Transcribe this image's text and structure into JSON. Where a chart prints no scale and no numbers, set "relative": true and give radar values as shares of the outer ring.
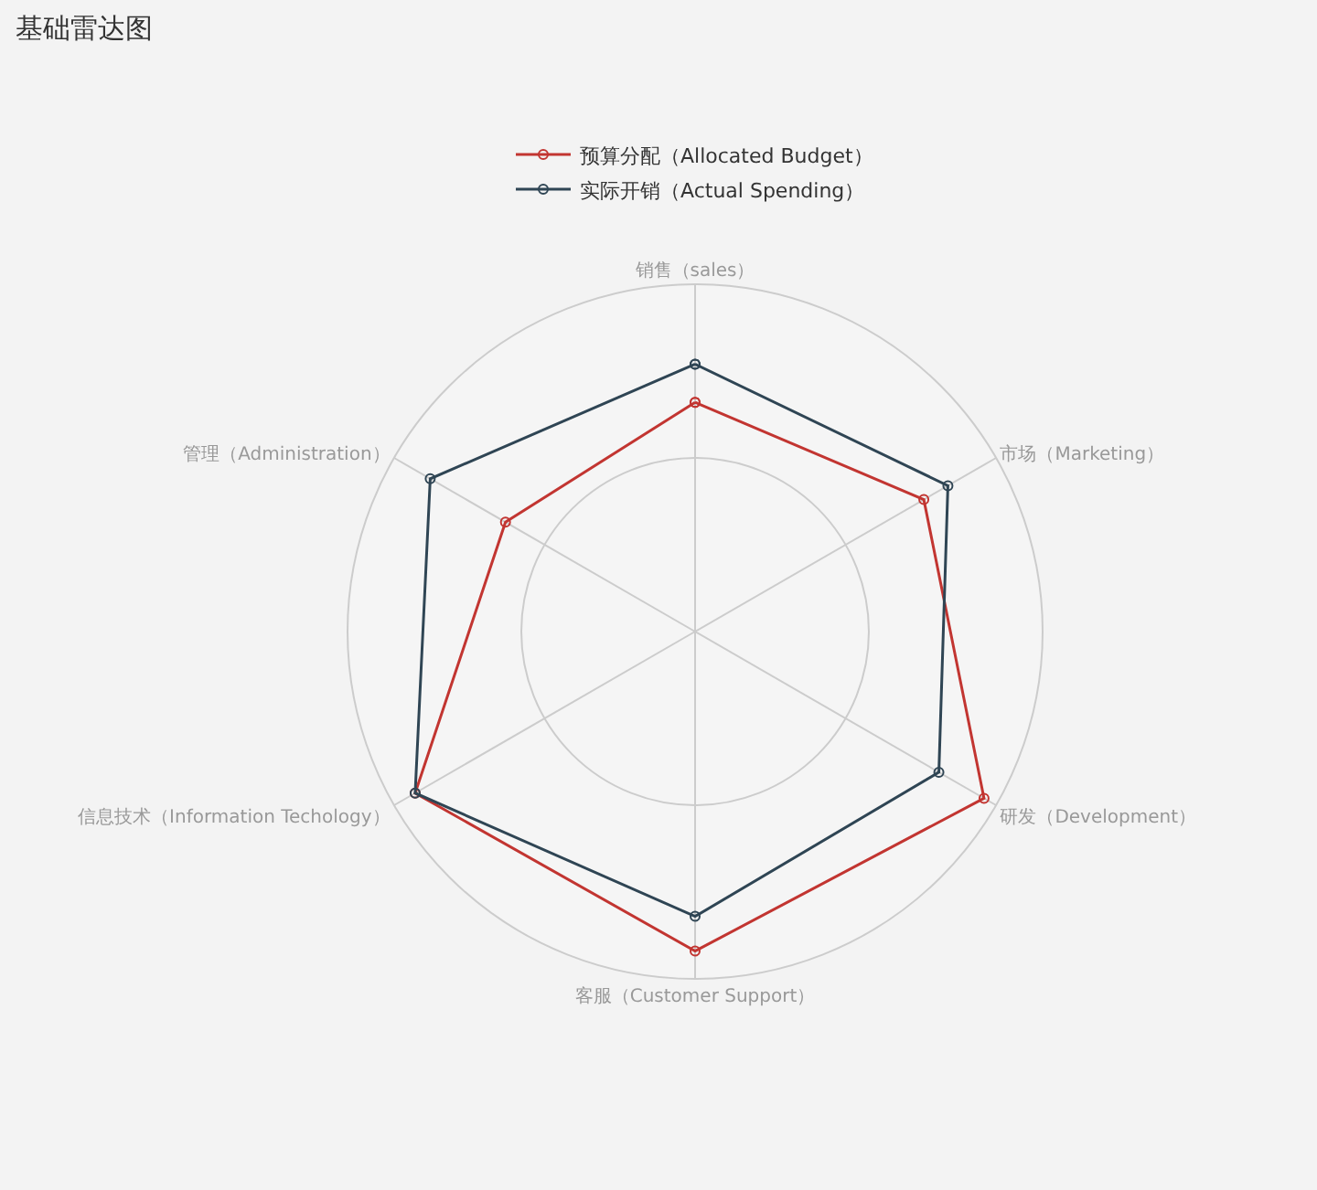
{
  "chart_data": {
    "type": "radar",
    "title": "基础雷达图",
    "relative": true,
    "legend": "top",
    "marker": "circle",
    "grid": true,
    "categories": [
      "销售（sales）",
      "市场（Marketing）",
      "研发（Development）",
      "客服（Customer Support）",
      "信息技术（Information Techology）",
      "管理（Administration）"
    ],
    "series": [
      {
        "name": "预算分配（Allocated Budget）",
        "color": "#c23531",
        "values": [
          0.66,
          0.76,
          0.96,
          0.92,
          0.93,
          0.63
        ]
      },
      {
        "name": "实际开销（Actual Spending）",
        "color": "#2f4554",
        "values": [
          0.77,
          0.84,
          0.81,
          0.82,
          0.93,
          0.88
        ]
      }
    ]
  }
}
